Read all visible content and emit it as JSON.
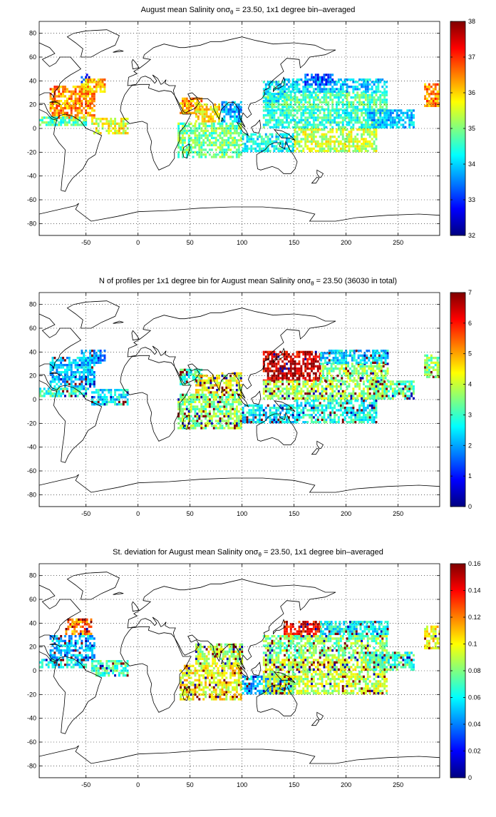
{
  "chart_data": [
    {
      "type": "heatmap",
      "title": {
        "before": "August mean Salinity on",
        "sigma": "σ",
        "sub": "θ",
        "after": " = 23.50, 1x1 degree bin–averaged"
      },
      "xlim": [
        -95,
        290
      ],
      "ylim": [
        -90,
        90
      ],
      "xticks": [
        -50,
        0,
        50,
        100,
        150,
        200,
        250
      ],
      "yticks": [
        80,
        60,
        40,
        20,
        0,
        -20,
        -40,
        -60,
        -80
      ],
      "grid": true,
      "colorbar": {
        "min": 32,
        "max": 38,
        "ticks": [
          32,
          33,
          34,
          35,
          36,
          37,
          38
        ],
        "colormap": "jet"
      },
      "regions": [
        {
          "x": [
            -85,
            -42
          ],
          "y": [
            8,
            36
          ],
          "value": 36.4
        },
        {
          "x": [
            -55,
            -32
          ],
          "y": [
            30,
            42
          ],
          "value": 36.2
        },
        {
          "x": [
            -95,
            -50
          ],
          "y": [
            2,
            10
          ],
          "value": 34.8
        },
        {
          "x": [
            -45,
            -10
          ],
          "y": [
            -5,
            8
          ],
          "value": 35.6
        },
        {
          "x": [
            -55,
            -50
          ],
          "y": [
            38,
            44
          ],
          "value": 33.2
        },
        {
          "x": [
            -50,
            -46
          ],
          "y": [
            42,
            46
          ],
          "value": 32.6
        },
        {
          "x": [
            40,
            62
          ],
          "y": [
            12,
            26
          ],
          "value": 36.3
        },
        {
          "x": [
            55,
            78
          ],
          "y": [
            5,
            20
          ],
          "value": 35.8
        },
        {
          "x": [
            38,
            100
          ],
          "y": [
            -25,
            5
          ],
          "value": 34.9
        },
        {
          "x": [
            80,
            100
          ],
          "y": [
            5,
            22
          ],
          "value": 33.8
        },
        {
          "x": [
            100,
            150
          ],
          "y": [
            -20,
            -5
          ],
          "value": 34.3
        },
        {
          "x": [
            120,
            240
          ],
          "y": [
            15,
            30
          ],
          "value": 34.7
        },
        {
          "x": [
            120,
            240
          ],
          "y": [
            0,
            15
          ],
          "value": 34.5
        },
        {
          "x": [
            150,
            230
          ],
          "y": [
            -20,
            0
          ],
          "value": 35.4
        },
        {
          "x": [
            220,
            265
          ],
          "y": [
            0,
            15
          ],
          "value": 33.9
        },
        {
          "x": [
            120,
            140
          ],
          "y": [
            22,
            40
          ],
          "value": 34.2
        },
        {
          "x": [
            140,
            240
          ],
          "y": [
            30,
            42
          ],
          "value": 34.0
        },
        {
          "x": [
            160,
            190
          ],
          "y": [
            36,
            46
          ],
          "value": 33.1
        },
        {
          "x": [
            275,
            290
          ],
          "y": [
            18,
            38
          ],
          "value": 36.5
        }
      ]
    },
    {
      "type": "heatmap",
      "title": {
        "before": "N of profiles per 1x1 degree bin for August mean Salinity on",
        "sigma": "σ",
        "sub": "θ",
        "after": " = 23.50 (36030 in total)"
      },
      "xlim": [
        -95,
        290
      ],
      "ylim": [
        -90,
        90
      ],
      "xticks": [
        -50,
        0,
        50,
        100,
        150,
        200,
        250
      ],
      "yticks": [
        80,
        60,
        40,
        20,
        0,
        -20,
        -40,
        -60,
        -80
      ],
      "grid": true,
      "colorbar": {
        "min": 0,
        "max": 7,
        "ticks": [
          0,
          1,
          2,
          3,
          4,
          5,
          6,
          7
        ],
        "colormap": "jet"
      },
      "regions": [
        {
          "x": [
            -85,
            -42
          ],
          "y": [
            8,
            36
          ],
          "value": 2.2
        },
        {
          "x": [
            -55,
            -32
          ],
          "y": [
            30,
            42
          ],
          "value": 2.0
        },
        {
          "x": [
            -95,
            -50
          ],
          "y": [
            2,
            10
          ],
          "value": 3.0
        },
        {
          "x": [
            -45,
            -10
          ],
          "y": [
            -5,
            8
          ],
          "value": 2.5
        },
        {
          "x": [
            40,
            62
          ],
          "y": [
            12,
            26
          ],
          "value": 3.0
        },
        {
          "x": [
            55,
            78
          ],
          "y": [
            5,
            20
          ],
          "value": 4.5
        },
        {
          "x": [
            38,
            100
          ],
          "y": [
            -25,
            5
          ],
          "value": 3.6
        },
        {
          "x": [
            80,
            100
          ],
          "y": [
            5,
            22
          ],
          "value": 4.2
        },
        {
          "x": [
            100,
            150
          ],
          "y": [
            -20,
            -5
          ],
          "value": 2.5
        },
        {
          "x": [
            120,
            175
          ],
          "y": [
            15,
            40
          ],
          "value": 6.4
        },
        {
          "x": [
            175,
            240
          ],
          "y": [
            15,
            30
          ],
          "value": 3.6
        },
        {
          "x": [
            120,
            240
          ],
          "y": [
            0,
            15
          ],
          "value": 3.8
        },
        {
          "x": [
            150,
            230
          ],
          "y": [
            -20,
            0
          ],
          "value": 2.8
        },
        {
          "x": [
            220,
            265
          ],
          "y": [
            0,
            15
          ],
          "value": 3.4
        },
        {
          "x": [
            175,
            240
          ],
          "y": [
            30,
            42
          ],
          "value": 2.4
        },
        {
          "x": [
            275,
            290
          ],
          "y": [
            18,
            38
          ],
          "value": 3.5
        }
      ]
    },
    {
      "type": "heatmap",
      "title": {
        "before": "St. deviation for August mean Salinity on",
        "sigma": "σ",
        "sub": "θ",
        "after": " = 23.50, 1x1 degree bin–averaged"
      },
      "xlim": [
        -95,
        290
      ],
      "ylim": [
        -90,
        90
      ],
      "xticks": [
        -50,
        0,
        50,
        100,
        150,
        200,
        250
      ],
      "yticks": [
        80,
        60,
        40,
        20,
        0,
        -20,
        -40,
        -60,
        -80
      ],
      "grid": true,
      "colorbar": {
        "min": 0,
        "max": 0.16,
        "ticks": [
          0,
          0.02,
          0.04,
          0.06,
          0.08,
          0.1,
          0.12,
          0.14,
          0.16
        ],
        "colormap": "jet"
      },
      "regions": [
        {
          "x": [
            -70,
            -45
          ],
          "y": [
            30,
            44
          ],
          "value": 0.12
        },
        {
          "x": [
            -85,
            -42
          ],
          "y": [
            8,
            30
          ],
          "value": 0.05
        },
        {
          "x": [
            -95,
            -50
          ],
          "y": [
            2,
            10
          ],
          "value": 0.06
        },
        {
          "x": [
            -45,
            -10
          ],
          "y": [
            -5,
            8
          ],
          "value": 0.07
        },
        {
          "x": [
            40,
            100
          ],
          "y": [
            -25,
            5
          ],
          "value": 0.1
        },
        {
          "x": [
            55,
            100
          ],
          "y": [
            5,
            22
          ],
          "value": 0.09
        },
        {
          "x": [
            100,
            150
          ],
          "y": [
            -20,
            -5
          ],
          "value": 0.05
        },
        {
          "x": [
            140,
            175
          ],
          "y": [
            28,
            42
          ],
          "value": 0.14
        },
        {
          "x": [
            120,
            240
          ],
          "y": [
            10,
            30
          ],
          "value": 0.08
        },
        {
          "x": [
            120,
            240
          ],
          "y": [
            -20,
            10
          ],
          "value": 0.09
        },
        {
          "x": [
            220,
            265
          ],
          "y": [
            0,
            15
          ],
          "value": 0.07
        },
        {
          "x": [
            175,
            240
          ],
          "y": [
            30,
            42
          ],
          "value": 0.06
        },
        {
          "x": [
            275,
            290
          ],
          "y": [
            18,
            38
          ],
          "value": 0.1
        }
      ]
    }
  ]
}
